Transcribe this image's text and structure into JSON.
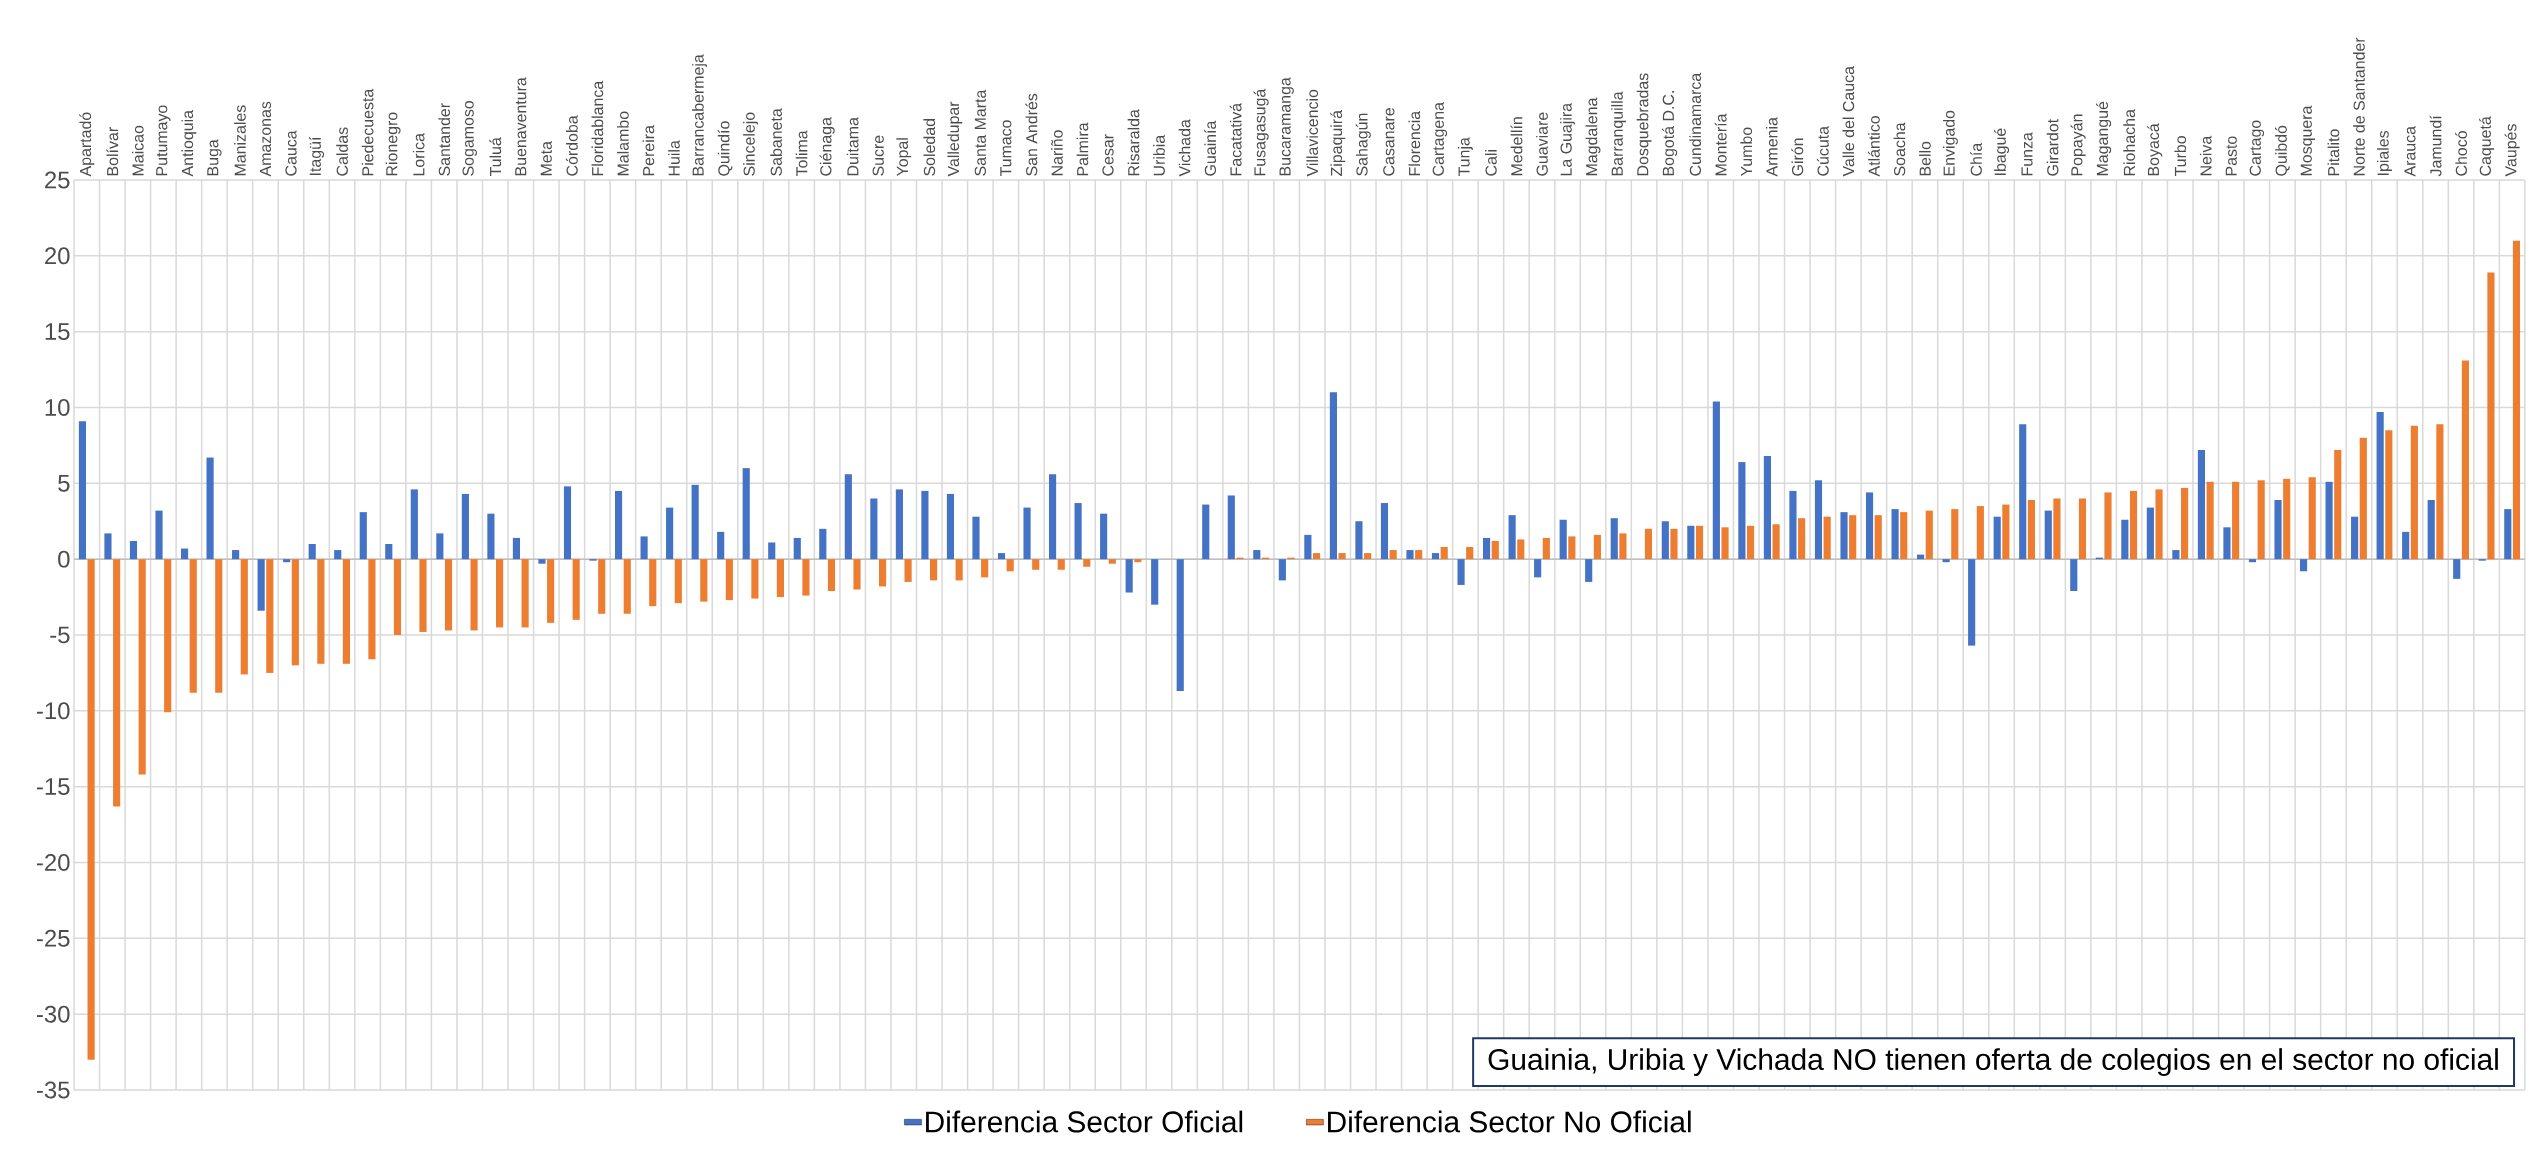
{
  "chart_data": {
    "type": "bar",
    "categories": [
      "Apartadó",
      "Bolívar",
      "Maicao",
      "Putumayo",
      "Antioquia",
      "Buga",
      "Manizales",
      "Amazonas",
      "Cauca",
      "Itagüí",
      "Caldas",
      "Piedecuesta",
      "Rionegro",
      "Lorica",
      "Santander",
      "Sogamoso",
      "Tuluá",
      "Buenaventura",
      "Meta",
      "Córdoba",
      "Floridablanca",
      "Malambo",
      "Pereira",
      "Huila",
      "Barrancabermeja",
      "Quindío",
      "Sincelejo",
      "Sabaneta",
      "Tolima",
      "Ciénaga",
      "Duitama",
      "Sucre",
      "Yopal",
      "Soledad",
      "Valledupar",
      "Santa Marta",
      "Tumaco",
      "San Andrés",
      "Nariño",
      "Palmira",
      "Cesar",
      "Risaralda",
      "Uribia",
      "Vichada",
      "Guainía",
      "Facatativá",
      "Fusagasugá",
      "Bucaramanga",
      "Villavicencio",
      "Zipaquirá",
      "Sahagún",
      "Casanare",
      "Florencia",
      "Cartagena",
      "Tunja",
      "Cali",
      "Medellín",
      "Guaviare",
      "La Guajira",
      "Magdalena",
      "Barranquilla",
      "Dosquebradas",
      "Bogotá D.C.",
      "Cundinamarca",
      "Montería",
      "Yumbo",
      "Armenia",
      "Girón",
      "Cúcuta",
      "Valle del Cauca",
      "Atlántico",
      "Soacha",
      "Bello",
      "Envigado",
      "Chía",
      "Ibagué",
      "Funza",
      "Girardot",
      "Popayán",
      "Magangué",
      "Riohacha",
      "Boyacá",
      "Turbo",
      "Neiva",
      "Pasto",
      "Cartago",
      "Quibdó",
      "Mosquera",
      "Pitalito",
      "Norte de Santander",
      "Ipiales",
      "Arauca",
      "Jamundí",
      "Chocó",
      "Caquetá",
      "Vaupés"
    ],
    "series": [
      {
        "name": "Diferencia Sector Oficial",
        "color": "#4472c4",
        "values": [
          9.1,
          1.7,
          1.2,
          3.2,
          0.7,
          6.7,
          0.6,
          -3.4,
          -0.2,
          1.0,
          0.6,
          3.1,
          1.0,
          4.6,
          1.7,
          4.3,
          3.0,
          1.4,
          -0.3,
          4.8,
          -0.1,
          4.5,
          1.5,
          3.4,
          4.9,
          1.8,
          6.0,
          1.1,
          1.4,
          2.0,
          5.6,
          4.0,
          4.6,
          4.5,
          4.3,
          2.8,
          0.4,
          3.4,
          5.6,
          3.7,
          3.0,
          -2.2,
          -3.0,
          -8.7,
          3.6,
          4.2,
          0.6,
          -1.4,
          1.6,
          11.0,
          2.5,
          3.7,
          0.6,
          0.4,
          -1.7,
          1.4,
          2.9,
          -1.2,
          2.6,
          -1.5,
          2.7,
          0,
          2.5,
          2.2,
          10.4,
          6.4,
          6.8,
          4.5,
          5.2,
          3.1,
          4.4,
          3.3,
          0.3,
          -0.2,
          -5.7,
          2.8,
          8.9,
          3.2,
          -2.1,
          0.1,
          2.6,
          3.4,
          0.6,
          7.2,
          2.1,
          -0.2,
          3.9,
          -0.8,
          5.1,
          2.8,
          9.7,
          1.8,
          3.9,
          -1.3,
          -0.1,
          3.3
        ]
      },
      {
        "name": "Diferencia Sector No Oficial",
        "color": "#ed7d31",
        "values": [
          -33.0,
          -16.3,
          -14.2,
          -10.1,
          -8.8,
          -8.8,
          -7.6,
          -7.5,
          -7.0,
          -6.9,
          -6.9,
          -6.6,
          -5.0,
          -4.8,
          -4.7,
          -4.7,
          -4.5,
          -4.5,
          -4.2,
          -4.0,
          -3.6,
          -3.6,
          -3.1,
          -2.9,
          -2.8,
          -2.7,
          -2.6,
          -2.5,
          -2.4,
          -2.1,
          -2.0,
          -1.8,
          -1.5,
          -1.4,
          -1.4,
          -1.2,
          -0.8,
          -0.7,
          -0.7,
          -0.5,
          -0.3,
          -0.2,
          null,
          null,
          null,
          0.1,
          0.1,
          0.1,
          0.4,
          0.4,
          0.4,
          0.6,
          0.6,
          0.8,
          0.8,
          1.2,
          1.3,
          1.4,
          1.5,
          1.6,
          1.7,
          2.0,
          2.0,
          2.2,
          2.1,
          2.2,
          2.3,
          2.7,
          2.8,
          2.9,
          2.9,
          3.1,
          3.2,
          3.3,
          3.5,
          3.6,
          3.9,
          4.0,
          4.0,
          4.4,
          4.5,
          4.6,
          4.7,
          5.1,
          5.1,
          5.2,
          5.3,
          5.4,
          7.2,
          8.0,
          8.5,
          8.8,
          8.9,
          13.1,
          18.9,
          21.0
        ]
      }
    ],
    "ylim": [
      -35,
      25
    ],
    "yticks": [
      -35,
      -30,
      -25,
      -20,
      -15,
      -10,
      -5,
      0,
      5,
      10,
      15,
      20,
      25
    ],
    "grid": true,
    "legend": "bottom",
    "annotations": [
      "Guainia, Uribia y Vichada NO tienen oferta de colegios en el sector no oficial"
    ]
  }
}
